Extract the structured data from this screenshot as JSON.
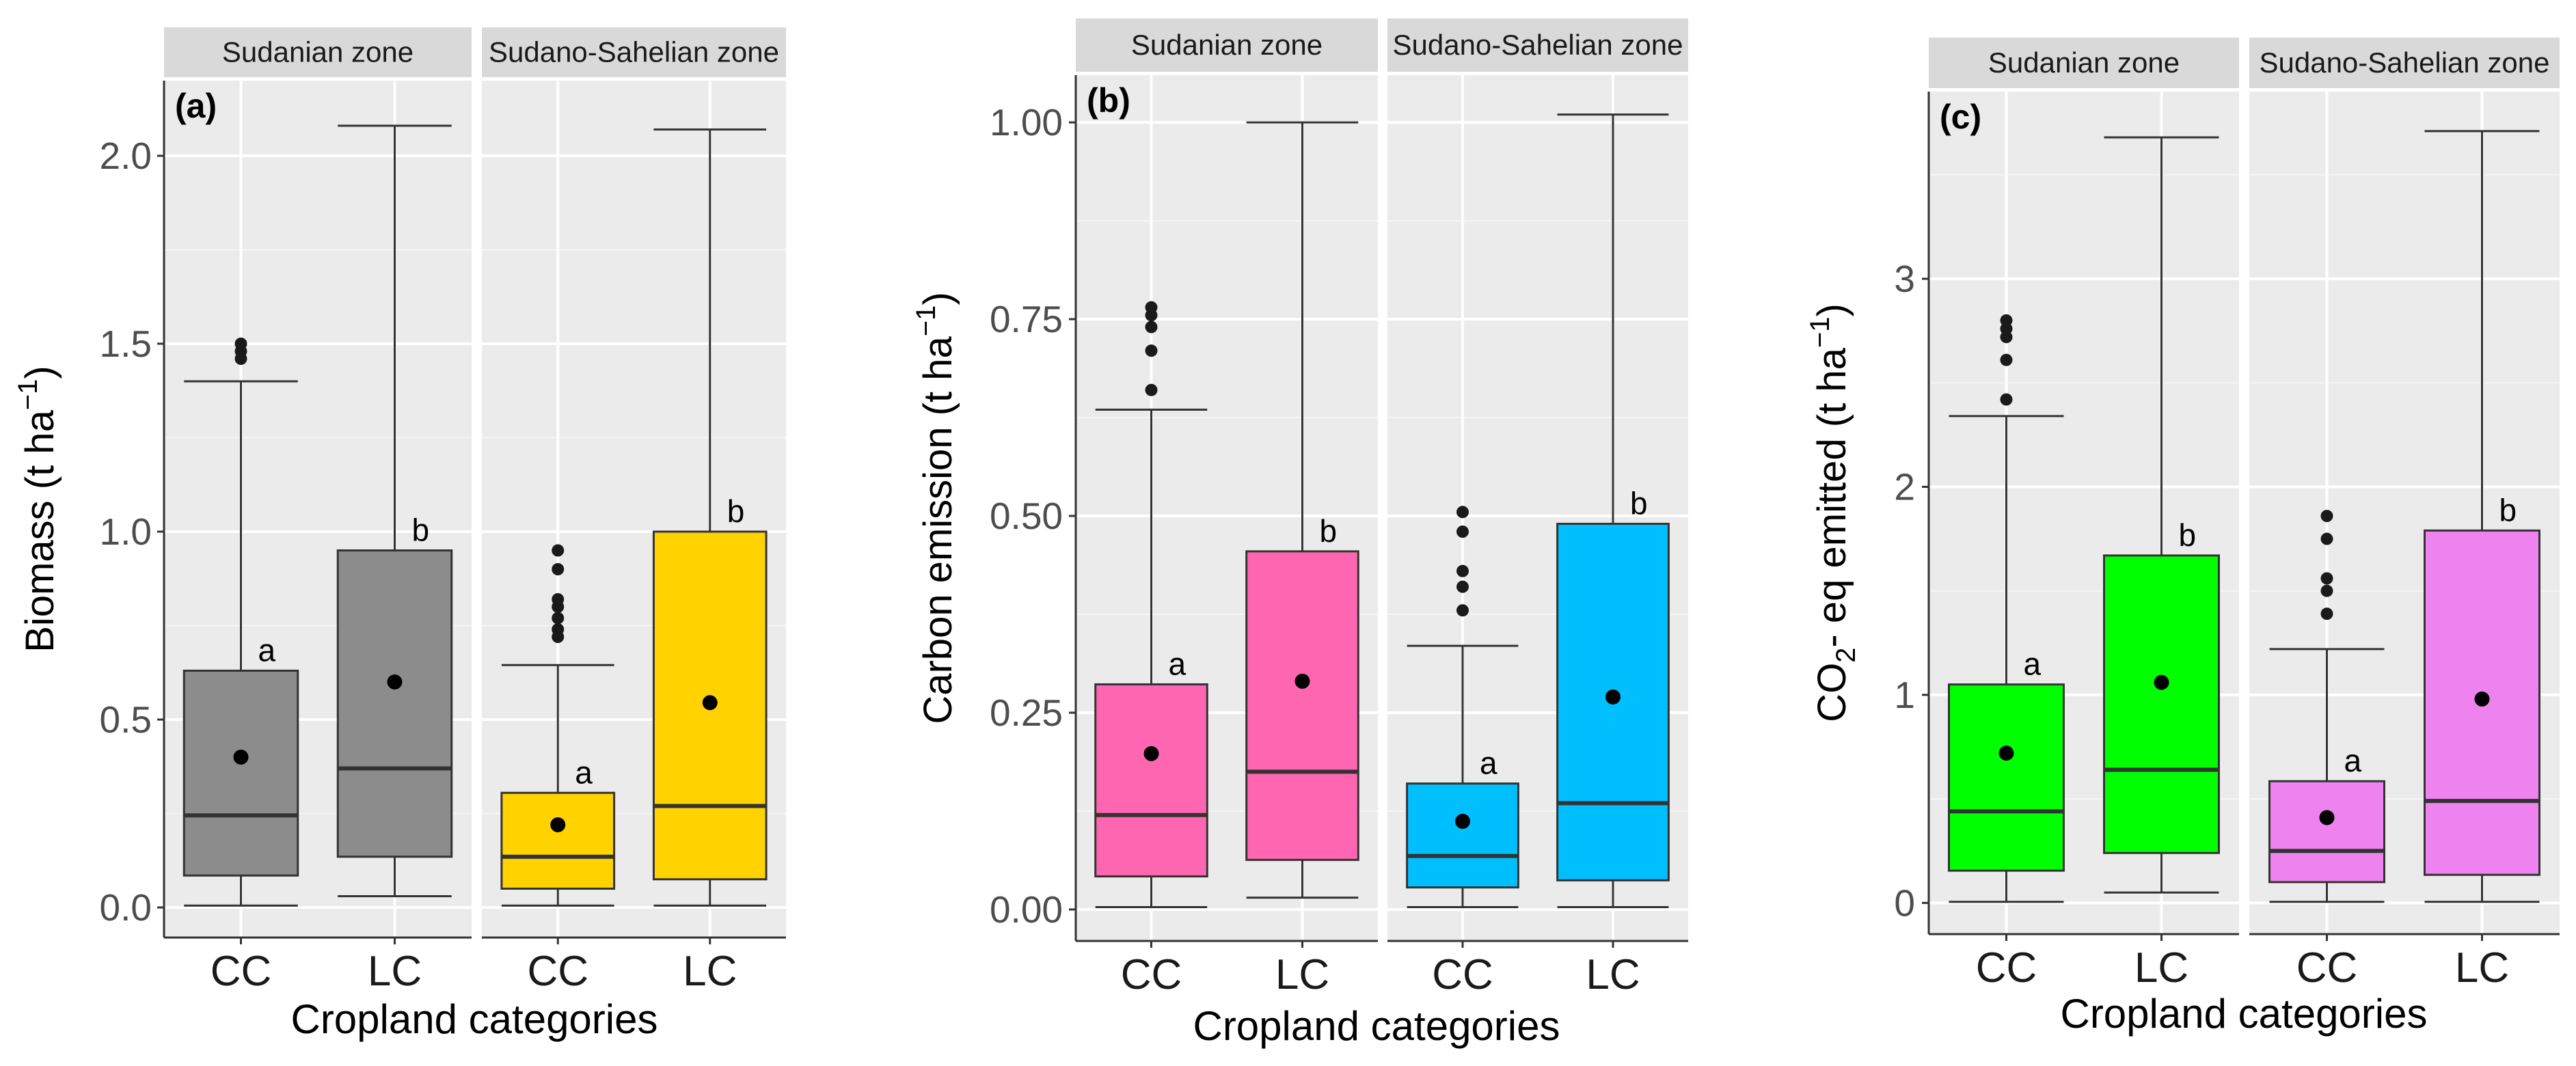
{
  "chart_data": [
    {
      "type": "boxplot",
      "panel_tag": "(a)",
      "ylabel": {
        "main": "Biomass (t ha",
        "sup": "−1",
        "tail": ")"
      },
      "xlabel": "Cropland categories",
      "ylim": [
        -0.08,
        2.2
      ],
      "yticks": [
        0,
        0.5,
        1,
        1.5,
        2
      ],
      "ytick_labels": [
        "0.0",
        "0.5",
        "1.0",
        "1.5",
        "2.0"
      ],
      "facets": [
        {
          "strip": "Sudanian zone",
          "categories": [
            "CC",
            "LC"
          ],
          "boxes": [
            {
              "category": "CC",
              "fill": "#8c8c8c",
              "lower_whisker": 0.005,
              "q1": 0.085,
              "median": 0.245,
              "q3": 0.63,
              "upper_whisker": 1.4,
              "mean": 0.4,
              "outliers": [
                1.46,
                1.48,
                1.5
              ],
              "letter": "a"
            },
            {
              "category": "LC",
              "fill": "#8c8c8c",
              "lower_whisker": 0.03,
              "q1": 0.135,
              "median": 0.37,
              "q3": 0.95,
              "upper_whisker": 2.08,
              "mean": 0.6,
              "outliers": [],
              "letter": "b"
            }
          ]
        },
        {
          "strip": "Sudano-Sahelian zone",
          "categories": [
            "CC",
            "LC"
          ],
          "boxes": [
            {
              "category": "CC",
              "fill": "#ffd200",
              "lower_whisker": 0.005,
              "q1": 0.05,
              "median": 0.135,
              "q3": 0.305,
              "upper_whisker": 0.645,
              "mean": 0.22,
              "outliers": [
                0.72,
                0.74,
                0.77,
                0.8,
                0.82,
                0.9,
                0.95
              ],
              "letter": "a"
            },
            {
              "category": "LC",
              "fill": "#ffd200",
              "lower_whisker": 0.005,
              "q1": 0.075,
              "median": 0.27,
              "q3": 1.0,
              "upper_whisker": 2.07,
              "mean": 0.545,
              "outliers": [],
              "letter": "b"
            }
          ]
        }
      ]
    },
    {
      "type": "boxplot",
      "panel_tag": "(b)",
      "ylabel": {
        "main": "Carbon emission (t ha",
        "sup": "−1",
        "tail": ")"
      },
      "xlabel": "Cropland categories",
      "ylim": [
        -0.04,
        1.06
      ],
      "yticks": [
        0,
        0.25,
        0.5,
        0.75,
        1
      ],
      "ytick_labels": [
        "0.00",
        "0.25",
        "0.50",
        "0.75",
        "1.00"
      ],
      "facets": [
        {
          "strip": "Sudanian zone",
          "categories": [
            "CC",
            "LC"
          ],
          "boxes": [
            {
              "category": "CC",
              "fill": "#ff66b2",
              "lower_whisker": 0.003,
              "q1": 0.042,
              "median": 0.12,
              "q3": 0.286,
              "upper_whisker": 0.635,
              "mean": 0.198,
              "outliers": [
                0.66,
                0.71,
                0.74,
                0.755,
                0.765
              ],
              "letter": "a"
            },
            {
              "category": "LC",
              "fill": "#ff66b2",
              "lower_whisker": 0.015,
              "q1": 0.063,
              "median": 0.175,
              "q3": 0.455,
              "upper_whisker": 1.0,
              "mean": 0.29,
              "outliers": [],
              "letter": "b"
            }
          ]
        },
        {
          "strip": "Sudano-Sahelian zone",
          "categories": [
            "CC",
            "LC"
          ],
          "boxes": [
            {
              "category": "CC",
              "fill": "#00bfff",
              "lower_whisker": 0.003,
              "q1": 0.028,
              "median": 0.068,
              "q3": 0.16,
              "upper_whisker": 0.335,
              "mean": 0.112,
              "outliers": [
                0.38,
                0.41,
                0.43,
                0.48,
                0.505
              ],
              "letter": "a"
            },
            {
              "category": "LC",
              "fill": "#00bfff",
              "lower_whisker": 0.003,
              "q1": 0.037,
              "median": 0.135,
              "q3": 0.49,
              "upper_whisker": 1.01,
              "mean": 0.27,
              "outliers": [],
              "letter": "b"
            }
          ]
        }
      ]
    },
    {
      "type": "boxplot",
      "panel_tag": "(c)",
      "ylabel": {
        "main": "CO",
        "sub": "2",
        "tail": "- eq emitted (t ha",
        "sup": "−1",
        "tail2": ")"
      },
      "xlabel": "Cropland categories",
      "ylim": [
        -0.15,
        3.9
      ],
      "yticks": [
        0,
        1,
        2,
        3
      ],
      "ytick_labels": [
        "0",
        "1",
        "2",
        "3"
      ],
      "facets": [
        {
          "strip": "Sudanian zone",
          "categories": [
            "CC",
            "LC"
          ],
          "boxes": [
            {
              "category": "CC",
              "fill": "#00ff00",
              "lower_whisker": 0.005,
              "q1": 0.155,
              "median": 0.44,
              "q3": 1.05,
              "upper_whisker": 2.34,
              "mean": 0.72,
              "outliers": [
                2.42,
                2.61,
                2.72,
                2.76,
                2.8
              ],
              "letter": "a"
            },
            {
              "category": "LC",
              "fill": "#00ff00",
              "lower_whisker": 0.05,
              "q1": 0.24,
              "median": 0.64,
              "q3": 1.67,
              "upper_whisker": 3.68,
              "mean": 1.06,
              "outliers": [],
              "letter": "b"
            }
          ]
        },
        {
          "strip": "Sudano-Sahelian zone",
          "categories": [
            "CC",
            "LC"
          ],
          "boxes": [
            {
              "category": "CC",
              "fill": "#ee82ee",
              "lower_whisker": 0.005,
              "q1": 0.1,
              "median": 0.25,
              "q3": 0.585,
              "upper_whisker": 1.22,
              "mean": 0.41,
              "outliers": [
                1.39,
                1.5,
                1.56,
                1.75,
                1.86
              ],
              "letter": "a"
            },
            {
              "category": "LC",
              "fill": "#ee82ee",
              "lower_whisker": 0.005,
              "q1": 0.135,
              "median": 0.49,
              "q3": 1.79,
              "upper_whisker": 3.71,
              "mean": 0.98,
              "outliers": [],
              "letter": "b"
            }
          ]
        }
      ]
    }
  ]
}
